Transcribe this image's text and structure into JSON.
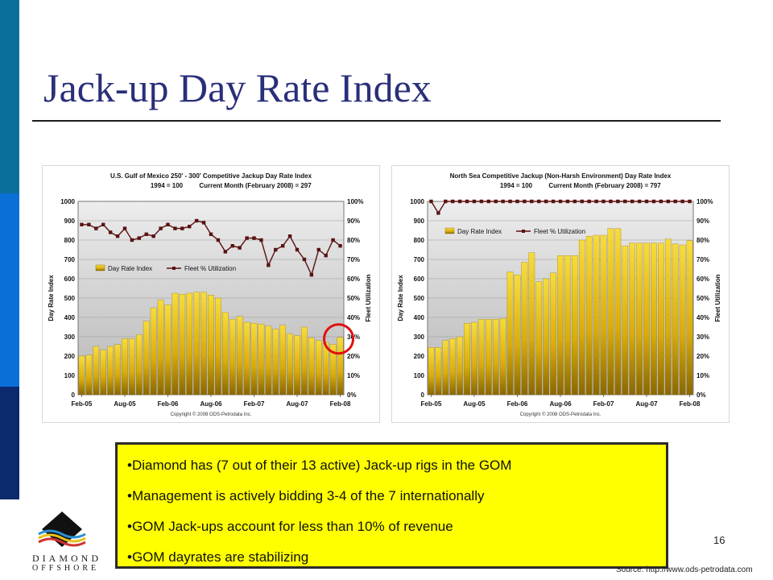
{
  "slide": {
    "title": "Jack-up Day Rate Index",
    "page_number": "16",
    "source": "Source: http://www.ods-petrodata.com",
    "logo": {
      "line1": "DIAMOND",
      "line2": "OFFSHORE",
      "icon": "diamond-logo-icon"
    }
  },
  "callout": {
    "items": [
      "•Diamond has (7 out of their 13 active) Jack-up rigs in the GOM",
      "•Management is actively bidding 3-4 of the 7 internationally",
      "•GOM Jack-ups account for less than 10% of revenue",
      "•GOM dayrates are stabilizing"
    ]
  },
  "colors": {
    "bar_fill": "#e8c018",
    "line": "#5a1212",
    "callout_bg": "#ffff00",
    "highlight_circle": "#e01010",
    "title": "#2a2f7a"
  },
  "chart_data": [
    {
      "type": "bar",
      "title": "U.S. Gulf of Mexico 250' - 300' Competitive Jackup Day Rate Index",
      "subtitle_left": "1994 = 100",
      "subtitle_right": "Current Month (February 2008) = 297",
      "ylabel": "Day Rate Index",
      "y2label": "Fleet Utilization",
      "ylim": [
        0,
        1000
      ],
      "y2lim": [
        0,
        100
      ],
      "yticks": [
        "0",
        "100",
        "200",
        "300",
        "400",
        "500",
        "600",
        "700",
        "800",
        "900",
        "1000"
      ],
      "y2ticks": [
        "0%",
        "10%",
        "20%",
        "30%",
        "40%",
        "50%",
        "60%",
        "70%",
        "80%",
        "90%",
        "100%"
      ],
      "xticks": [
        "Feb-05",
        "Aug-05",
        "Feb-06",
        "Aug-06",
        "Feb-07",
        "Aug-07",
        "Feb-08"
      ],
      "copyright": "Copyright © 2008 ODS-Petrodata Inc.",
      "legend_position": "middle-left",
      "highlight": "circle around Feb-08",
      "series": [
        {
          "name": "Day Rate Index",
          "type": "bar",
          "values": [
            200,
            205,
            250,
            230,
            250,
            260,
            290,
            290,
            310,
            380,
            450,
            490,
            465,
            525,
            520,
            525,
            530,
            530,
            515,
            500,
            425,
            390,
            405,
            375,
            370,
            365,
            355,
            340,
            360,
            315,
            305,
            350,
            295,
            280,
            270,
            260,
            297
          ]
        },
        {
          "name": "Fleet % Utilization",
          "type": "line",
          "values": [
            88,
            88,
            86,
            88,
            84,
            82,
            86,
            80,
            81,
            83,
            82,
            86,
            88,
            86,
            86,
            87,
            90,
            89,
            83,
            80,
            74,
            77,
            76,
            81,
            81,
            80,
            67,
            75,
            77,
            82,
            75,
            70,
            62,
            75,
            72,
            80,
            77
          ]
        }
      ]
    },
    {
      "type": "bar",
      "title": "North Sea Competitive Jackup (Non-Harsh Environment) Day Rate Index",
      "subtitle_left": "1994 = 100",
      "subtitle_right": "Current Month (February 2008) = 797",
      "ylabel": "Day Rate Index",
      "y2label": "Fleet Utilization",
      "ylim": [
        0,
        1000
      ],
      "y2lim": [
        0,
        100
      ],
      "yticks": [
        "0",
        "100",
        "200",
        "300",
        "400",
        "500",
        "600",
        "700",
        "800",
        "900",
        "1000"
      ],
      "y2ticks": [
        "0%",
        "10%",
        "20%",
        "30%",
        "40%",
        "50%",
        "60%",
        "70%",
        "80%",
        "90%",
        "100%"
      ],
      "xticks": [
        "Feb-05",
        "Aug-05",
        "Feb-06",
        "Aug-06",
        "Feb-07",
        "Aug-07",
        "Feb-08"
      ],
      "copyright": "Copyright © 2008 ODS-Petrodata Inc.",
      "legend_position": "top-left",
      "series": [
        {
          "name": "Day Rate Index",
          "type": "bar",
          "values": [
            245,
            245,
            280,
            290,
            300,
            370,
            375,
            390,
            390,
            390,
            395,
            635,
            620,
            685,
            735,
            585,
            600,
            630,
            720,
            720,
            720,
            800,
            820,
            825,
            825,
            860,
            860,
            770,
            785,
            785,
            785,
            785,
            785,
            805,
            780,
            775,
            797
          ]
        },
        {
          "name": "Fleet % Utilization",
          "type": "line",
          "values": [
            100,
            94,
            100,
            100,
            100,
            100,
            100,
            100,
            100,
            100,
            100,
            100,
            100,
            100,
            100,
            100,
            100,
            100,
            100,
            100,
            100,
            100,
            100,
            100,
            100,
            100,
            100,
            100,
            100,
            100,
            100,
            100,
            100,
            100,
            100,
            100,
            100
          ]
        }
      ]
    }
  ]
}
